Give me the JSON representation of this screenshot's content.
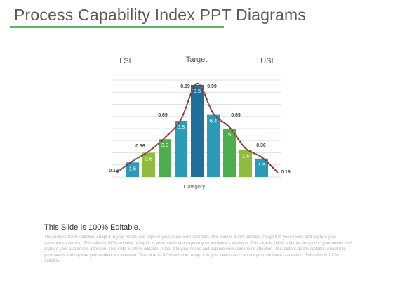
{
  "slide": {
    "title": "Process Capability Index PPT Diagrams",
    "accent_color": "#5cb85c",
    "body_heading": "This Slide Is 100% Editable.",
    "body_text": "This slide is 100% editable. Adapt it to your needs and capture your audience's attention. This slide is 100% editable. Adapt it to your needs and capture your audience's attention. This slide is 100% editable. Adapt it to your needs and capture your audience's attention. This slide is 100% editable. Adapt it to your needs and capture your audience's attention. This slide is 100% editable. Adapt it to your needs and capture your audience's attention. This slide is 100% editable. Adapt it to your needs and capture your audience's attention. This slide is 100% editable. Adapt it to your needs and capture your audience's attention. This slide is 100% editable."
  },
  "chart_data": {
    "type": "bar",
    "xlabel": "Category 1",
    "ylim": [
      0,
      10
    ],
    "grid": true,
    "header_labels": {
      "lsl": "LSL",
      "target": "Target",
      "usl": "USL"
    },
    "bars": [
      {
        "value": 1.5,
        "label": "1.5",
        "color": "#2b9bb7"
      },
      {
        "value": 2.5,
        "label": "2.5",
        "color": "#8fbc3f"
      },
      {
        "value": 3.9,
        "label": "3.9",
        "color": "#4cae4c"
      },
      {
        "value": 5.8,
        "label": "5.8",
        "color": "#2b9bb7"
      },
      {
        "value": 9.5,
        "label": "9.5",
        "color": "#1f6f9a"
      },
      {
        "value": 6.4,
        "label": "6.4",
        "color": "#2b9bb7"
      },
      {
        "value": 5.0,
        "label": "5",
        "color": "#4cae4c"
      },
      {
        "value": 2.8,
        "label": "2.8",
        "color": "#8fbc3f"
      },
      {
        "value": 1.9,
        "label": "1.9",
        "color": "#2b9bb7"
      }
    ],
    "curve": {
      "color": "#8b2f35",
      "points": [
        0.19,
        0.36,
        0.69,
        0.99,
        0.99,
        0.69,
        0.36,
        0.19
      ]
    },
    "curve_labels": [
      "0.19",
      "0.36",
      "0.69",
      "0.99",
      "0.99",
      "0.69",
      "0.36",
      "0.19"
    ]
  }
}
